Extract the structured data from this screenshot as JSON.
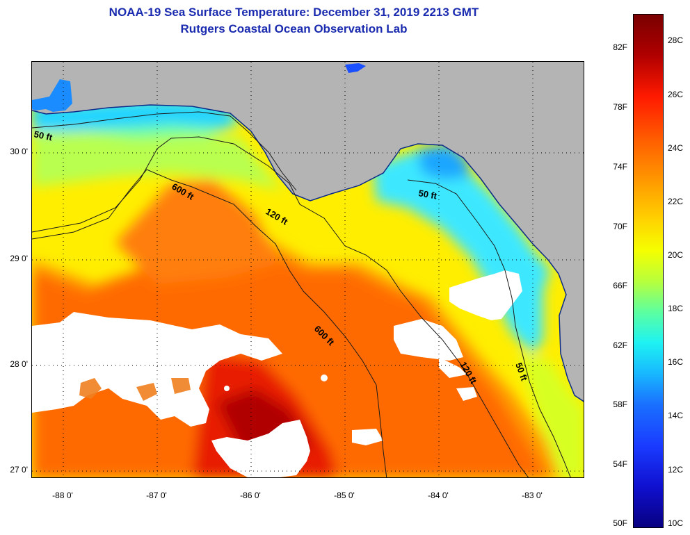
{
  "title_line1": "NOAA-19 Sea Surface Temperature:  December 31, 2019 2213 GMT",
  "title_line2": "Rutgers Coastal Ocean Observation Lab",
  "axes": {
    "lat_ticks": [
      "30 0'",
      "29 0'",
      "28 0'",
      "27 0'"
    ],
    "lon_ticks": [
      "-88 0'",
      "-87 0'",
      "-86 0'",
      "-85 0'",
      "-84 0'",
      "-83 0'"
    ],
    "lat_range": [
      26.97,
      30.85
    ],
    "lon_range": [
      -88.33,
      -82.43
    ],
    "grid": "dotted"
  },
  "contours": [
    {
      "label": "50 ft"
    },
    {
      "label": "120 ft"
    },
    {
      "label": "600 ft"
    },
    {
      "label": "600 ft"
    },
    {
      "label": "120 ft"
    },
    {
      "label": "50 ft"
    },
    {
      "label": "50 ft"
    }
  ],
  "colorbar": {
    "fahrenheit": [
      "82F",
      "78F",
      "74F",
      "70F",
      "66F",
      "62F",
      "58F",
      "54F",
      "50F"
    ],
    "celsius": [
      "28C",
      "26C",
      "24C",
      "22C",
      "20C",
      "18C",
      "16C",
      "14C",
      "12C",
      "10C"
    ],
    "range_c": [
      10,
      29.2
    ]
  },
  "colors": {
    "land": "#b4b4b4",
    "cloud": "#ffffff",
    "title": "#1a2bb0"
  }
}
